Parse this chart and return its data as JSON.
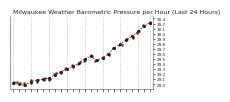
{
  "title": "Milwaukee Weather Barometric Pressure per Hour (Last 24 Hours)",
  "hours": [
    0,
    1,
    2,
    3,
    4,
    5,
    6,
    7,
    8,
    9,
    10,
    11,
    12,
    13,
    14,
    15,
    16,
    17,
    18,
    19,
    20,
    21,
    22,
    23
  ],
  "pressure": [
    29.02,
    29.0,
    28.98,
    29.05,
    29.08,
    29.1,
    29.12,
    29.18,
    29.25,
    29.3,
    29.35,
    29.42,
    29.5,
    29.55,
    29.48,
    29.52,
    29.6,
    29.72,
    29.8,
    29.88,
    29.95,
    30.05,
    30.15,
    30.22
  ],
  "line_color": "#ff0000",
  "marker_color": "#222222",
  "bg_color": "#ffffff",
  "grid_color": "#aaaaaa",
  "ylim_min": 28.9,
  "ylim_max": 30.35,
  "ytick_values": [
    29.0,
    29.1,
    29.2,
    29.3,
    29.4,
    29.5,
    29.6,
    29.7,
    29.8,
    29.9,
    30.0,
    30.1,
    30.2,
    30.3
  ],
  "title_fontsize": 4.5,
  "tick_fontsize": 3.0,
  "vgrid_positions": [
    0,
    3,
    6,
    9,
    12,
    15,
    18,
    21,
    23
  ]
}
